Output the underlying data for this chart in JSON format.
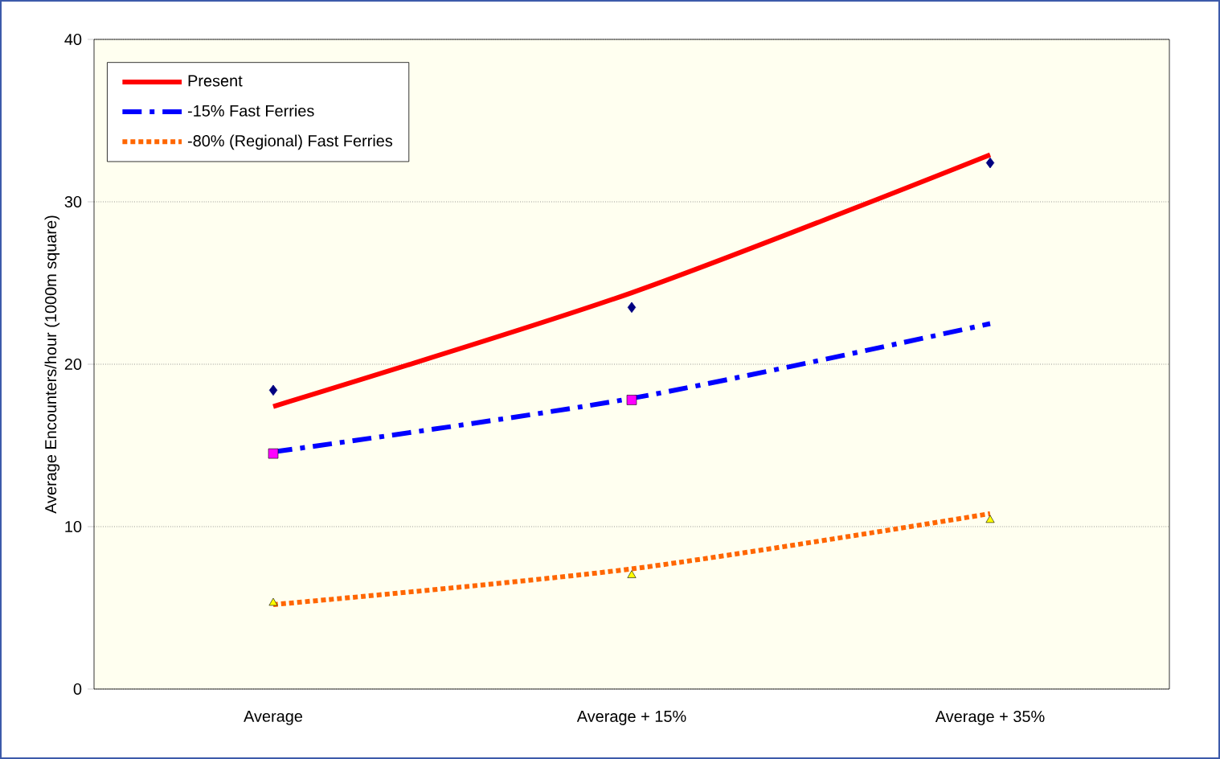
{
  "chart_data": {
    "type": "scatter",
    "ylabel": "Average Encounters/hour (1000m square)",
    "categories": [
      "Average",
      "Average + 15%",
      "Average + 35%"
    ],
    "ylim": [
      0,
      40
    ],
    "yticks": [
      0,
      10,
      20,
      30,
      40
    ],
    "grid": "y",
    "legend": "top left",
    "series": [
      {
        "type": "line",
        "name": "Present",
        "color": "#ff0000",
        "line_style": "solid",
        "values": [
          17.4,
          24.4,
          32.9
        ]
      },
      {
        "type": "line",
        "name": "-15% Fast Ferries",
        "color": "#0000ff",
        "line_style": "dashed",
        "values": [
          14.6,
          17.9,
          22.5
        ]
      },
      {
        "type": "line",
        "name": "-80% (Regional) Fast Ferries",
        "color": "#ff6600",
        "line_style": "dotted",
        "values": [
          5.2,
          7.4,
          10.8
        ]
      },
      {
        "color": "#000080",
        "marker": "diamond",
        "values": [
          18.4,
          23.5,
          32.4
        ]
      },
      {
        "color": "#ff00ff",
        "marker": "square",
        "values": [
          14.5,
          17.8,
          null
        ]
      },
      {
        "color": "#ffff00",
        "marker": "triangle",
        "values": [
          5.3,
          7.0,
          10.4
        ]
      }
    ]
  }
}
